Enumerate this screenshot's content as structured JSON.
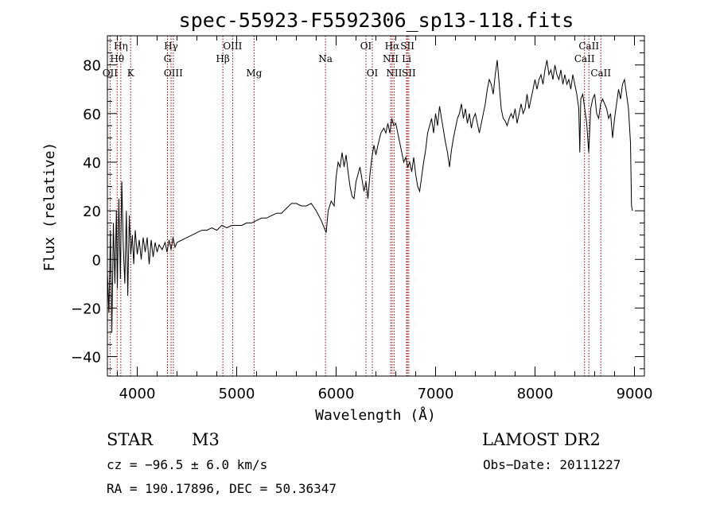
{
  "chart_data": {
    "type": "line",
    "title": "spec-55923-F5592306_sp13-118.fits",
    "xlabel": "Wavelength (Å)",
    "ylabel": "Flux (relative)",
    "xlim": [
      3700,
      9100
    ],
    "ylim": [
      -48,
      92
    ],
    "xticks": [
      4000,
      5000,
      6000,
      7000,
      8000,
      9000
    ],
    "yticks": [
      -40,
      -20,
      0,
      20,
      40,
      60,
      80
    ],
    "grid": false,
    "legend": "none",
    "series": [
      {
        "points": [
          [
            3700,
            -5
          ],
          [
            3715,
            -22
          ],
          [
            3730,
            12
          ],
          [
            3745,
            -30
          ],
          [
            3760,
            15
          ],
          [
            3775,
            -10
          ],
          [
            3790,
            20
          ],
          [
            3800,
            -12
          ],
          [
            3815,
            25
          ],
          [
            3830,
            -8
          ],
          [
            3845,
            32
          ],
          [
            3860,
            5
          ],
          [
            3875,
            -10
          ],
          [
            3890,
            20
          ],
          [
            3905,
            -15
          ],
          [
            3920,
            18
          ],
          [
            3935,
            2
          ],
          [
            3950,
            10
          ],
          [
            3965,
            -2
          ],
          [
            3980,
            12
          ],
          [
            4000,
            2
          ],
          [
            4020,
            8
          ],
          [
            4040,
            0
          ],
          [
            4060,
            9
          ],
          [
            4080,
            3
          ],
          [
            4100,
            9
          ],
          [
            4120,
            -2
          ],
          [
            4140,
            8
          ],
          [
            4160,
            1
          ],
          [
            4180,
            7
          ],
          [
            4200,
            3
          ],
          [
            4220,
            6
          ],
          [
            4250,
            4
          ],
          [
            4280,
            7
          ],
          [
            4300,
            3
          ],
          [
            4320,
            8
          ],
          [
            4340,
            4
          ],
          [
            4360,
            9
          ],
          [
            4380,
            5
          ],
          [
            4400,
            7
          ],
          [
            4450,
            8
          ],
          [
            4500,
            9
          ],
          [
            4550,
            10
          ],
          [
            4600,
            11
          ],
          [
            4650,
            12
          ],
          [
            4700,
            12
          ],
          [
            4750,
            13
          ],
          [
            4800,
            12
          ],
          [
            4850,
            14
          ],
          [
            4900,
            13
          ],
          [
            4950,
            14
          ],
          [
            5000,
            14
          ],
          [
            5050,
            14
          ],
          [
            5100,
            15
          ],
          [
            5150,
            15
          ],
          [
            5200,
            16
          ],
          [
            5250,
            17
          ],
          [
            5300,
            17
          ],
          [
            5350,
            18
          ],
          [
            5400,
            19
          ],
          [
            5450,
            19
          ],
          [
            5500,
            21
          ],
          [
            5550,
            23
          ],
          [
            5600,
            23
          ],
          [
            5650,
            22
          ],
          [
            5700,
            22
          ],
          [
            5750,
            23
          ],
          [
            5800,
            20
          ],
          [
            5850,
            16
          ],
          [
            5880,
            13
          ],
          [
            5900,
            11
          ],
          [
            5920,
            20
          ],
          [
            5950,
            24
          ],
          [
            5980,
            22
          ],
          [
            6000,
            34
          ],
          [
            6020,
            40
          ],
          [
            6040,
            38
          ],
          [
            6060,
            44
          ],
          [
            6080,
            38
          ],
          [
            6100,
            43
          ],
          [
            6120,
            36
          ],
          [
            6140,
            30
          ],
          [
            6160,
            26
          ],
          [
            6180,
            25
          ],
          [
            6200,
            32
          ],
          [
            6220,
            35
          ],
          [
            6240,
            38
          ],
          [
            6260,
            33
          ],
          [
            6280,
            28
          ],
          [
            6300,
            32
          ],
          [
            6320,
            25
          ],
          [
            6340,
            35
          ],
          [
            6360,
            42
          ],
          [
            6380,
            47
          ],
          [
            6400,
            43
          ],
          [
            6420,
            47
          ],
          [
            6450,
            52
          ],
          [
            6480,
            54
          ],
          [
            6500,
            52
          ],
          [
            6520,
            56
          ],
          [
            6540,
            52
          ],
          [
            6560,
            58
          ],
          [
            6580,
            55
          ],
          [
            6600,
            56
          ],
          [
            6620,
            52
          ],
          [
            6640,
            48
          ],
          [
            6660,
            44
          ],
          [
            6680,
            40
          ],
          [
            6700,
            42
          ],
          [
            6720,
            38
          ],
          [
            6740,
            40
          ],
          [
            6760,
            36
          ],
          [
            6780,
            42
          ],
          [
            6800,
            35
          ],
          [
            6820,
            30
          ],
          [
            6840,
            28
          ],
          [
            6860,
            34
          ],
          [
            6880,
            40
          ],
          [
            6900,
            45
          ],
          [
            6920,
            52
          ],
          [
            6940,
            55
          ],
          [
            6960,
            58
          ],
          [
            6980,
            52
          ],
          [
            7000,
            60
          ],
          [
            7020,
            55
          ],
          [
            7040,
            63
          ],
          [
            7060,
            58
          ],
          [
            7080,
            53
          ],
          [
            7100,
            48
          ],
          [
            7120,
            44
          ],
          [
            7140,
            38
          ],
          [
            7160,
            45
          ],
          [
            7180,
            50
          ],
          [
            7200,
            54
          ],
          [
            7220,
            58
          ],
          [
            7240,
            60
          ],
          [
            7260,
            64
          ],
          [
            7280,
            58
          ],
          [
            7300,
            62
          ],
          [
            7320,
            56
          ],
          [
            7340,
            60
          ],
          [
            7360,
            54
          ],
          [
            7380,
            58
          ],
          [
            7400,
            60
          ],
          [
            7420,
            56
          ],
          [
            7440,
            52
          ],
          [
            7460,
            56
          ],
          [
            7480,
            60
          ],
          [
            7500,
            64
          ],
          [
            7520,
            70
          ],
          [
            7540,
            74
          ],
          [
            7560,
            72
          ],
          [
            7580,
            68
          ],
          [
            7600,
            76
          ],
          [
            7620,
            82
          ],
          [
            7640,
            72
          ],
          [
            7660,
            62
          ],
          [
            7680,
            58
          ],
          [
            7700,
            57
          ],
          [
            7720,
            55
          ],
          [
            7740,
            58
          ],
          [
            7760,
            60
          ],
          [
            7780,
            58
          ],
          [
            7800,
            62
          ],
          [
            7820,
            56
          ],
          [
            7840,
            60
          ],
          [
            7860,
            64
          ],
          [
            7880,
            60
          ],
          [
            7900,
            62
          ],
          [
            7920,
            68
          ],
          [
            7940,
            62
          ],
          [
            7960,
            66
          ],
          [
            7980,
            70
          ],
          [
            8000,
            74
          ],
          [
            8020,
            70
          ],
          [
            8040,
            74
          ],
          [
            8060,
            76
          ],
          [
            8080,
            72
          ],
          [
            8100,
            78
          ],
          [
            8120,
            82
          ],
          [
            8140,
            76
          ],
          [
            8160,
            78
          ],
          [
            8180,
            74
          ],
          [
            8200,
            80
          ],
          [
            8220,
            76
          ],
          [
            8240,
            74
          ],
          [
            8260,
            78
          ],
          [
            8280,
            72
          ],
          [
            8300,
            76
          ],
          [
            8320,
            72
          ],
          [
            8340,
            74
          ],
          [
            8360,
            70
          ],
          [
            8380,
            76
          ],
          [
            8400,
            72
          ],
          [
            8420,
            68
          ],
          [
            8440,
            62
          ],
          [
            8450,
            44
          ],
          [
            8460,
            66
          ],
          [
            8480,
            68
          ],
          [
            8500,
            62
          ],
          [
            8520,
            56
          ],
          [
            8540,
            44
          ],
          [
            8560,
            62
          ],
          [
            8580,
            66
          ],
          [
            8600,
            68
          ],
          [
            8620,
            60
          ],
          [
            8640,
            58
          ],
          [
            8660,
            64
          ],
          [
            8680,
            66
          ],
          [
            8700,
            64
          ],
          [
            8720,
            62
          ],
          [
            8740,
            58
          ],
          [
            8760,
            60
          ],
          [
            8780,
            50
          ],
          [
            8800,
            58
          ],
          [
            8820,
            64
          ],
          [
            8840,
            70
          ],
          [
            8860,
            66
          ],
          [
            8880,
            72
          ],
          [
            8900,
            74
          ],
          [
            8920,
            68
          ],
          [
            8940,
            62
          ],
          [
            8960,
            48
          ],
          [
            8970,
            22
          ],
          [
            8980,
            20
          ]
        ]
      }
    ],
    "lines": [
      {
        "label": "OII",
        "x": 3727,
        "row": 2
      },
      {
        "label": "Hθ",
        "x": 3798,
        "row": 1
      },
      {
        "label": "Hη",
        "x": 3835,
        "row": 0
      },
      {
        "label": "K",
        "x": 3934,
        "row": 2
      },
      {
        "label": "Hγ",
        "x": 4340,
        "row": 0
      },
      {
        "label": "G",
        "x": 4304,
        "row": 1
      },
      {
        "label": "OIII",
        "x": 4363,
        "row": 2
      },
      {
        "label": "Hβ",
        "x": 4861,
        "row": 1
      },
      {
        "label": "OIII",
        "x": 4959,
        "row": 0
      },
      {
        "label": "Mg",
        "x": 5175,
        "row": 2
      },
      {
        "label": "Na",
        "x": 5893,
        "row": 1
      },
      {
        "label": "OI",
        "x": 6300,
        "row": 0
      },
      {
        "label": "OI",
        "x": 6364,
        "row": 2
      },
      {
        "label": "Hα",
        "x": 6563,
        "row": 0
      },
      {
        "label": "NII",
        "x": 6548,
        "row": 1
      },
      {
        "label": "NII",
        "x": 6583,
        "row": 2
      },
      {
        "label": "SII",
        "x": 6717,
        "row": 0
      },
      {
        "label": "Li",
        "x": 6708,
        "row": 1
      },
      {
        "label": "SII",
        "x": 6731,
        "row": 2
      },
      {
        "label": "CaII",
        "x": 8542,
        "row": 0
      },
      {
        "label": "CaII",
        "x": 8498,
        "row": 1
      },
      {
        "label": "CaII",
        "x": 8662,
        "row": 2
      }
    ]
  },
  "info": {
    "star_class": "STAR",
    "subclass": "M3",
    "survey": "LAMOST DR2",
    "cz": "cz = −96.5 ± 6.0 km/s",
    "obs_date": "Obs−Date: 20111227",
    "radec": "RA = 190.17896, DEC =  50.36347"
  },
  "colors": {
    "line_marker": "#8b0000",
    "spectrum": "#000000",
    "axes": "#000000"
  }
}
